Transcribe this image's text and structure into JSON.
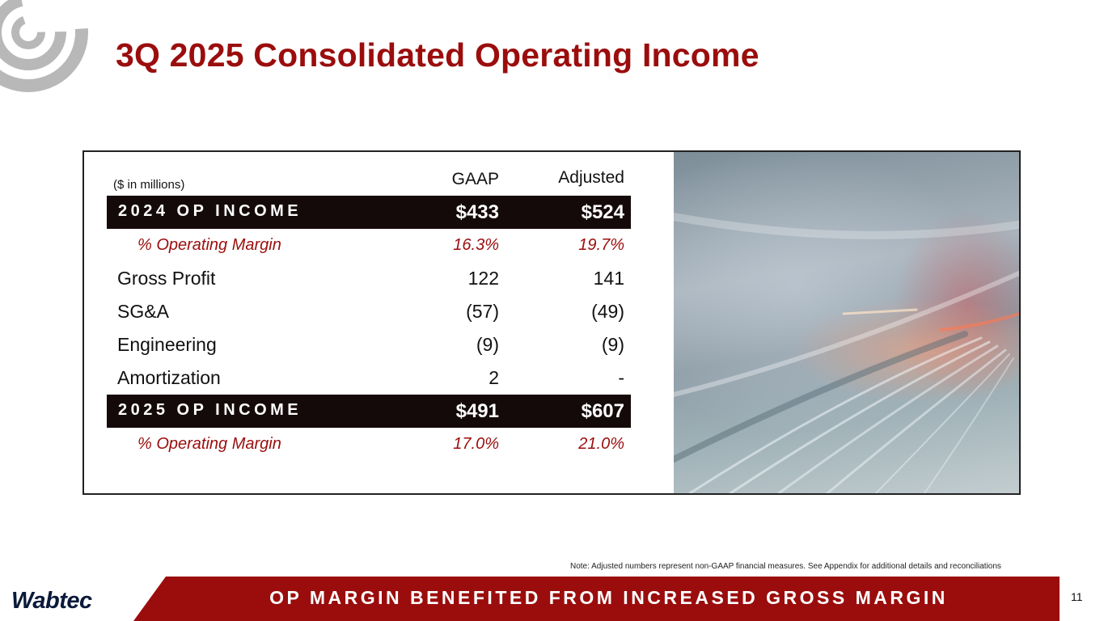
{
  "title": "3Q 2025 Consolidated Operating Income",
  "table": {
    "units_label": "($ in millions)",
    "col_gaap": "GAAP",
    "col_adjusted": "Adjusted",
    "rows": [
      {
        "label": "2024 OP INCOME",
        "gaap": "$433",
        "adjusted": "$524"
      },
      {
        "label": "% Operating Margin",
        "gaap": "16.3%",
        "adjusted": "19.7%"
      },
      {
        "label": "Gross Profit",
        "gaap": "122",
        "adjusted": "141"
      },
      {
        "label": "SG&A",
        "gaap": "(57)",
        "adjusted": "(49)"
      },
      {
        "label": "Engineering",
        "gaap": "(9)",
        "adjusted": "(9)"
      },
      {
        "label": "Amortization",
        "gaap": "2",
        "adjusted": "-"
      },
      {
        "label": "2025 OP INCOME",
        "gaap": "$491",
        "adjusted": "$607"
      },
      {
        "label": "% Operating Margin",
        "gaap": "17.0%",
        "adjusted": "21.0%"
      }
    ]
  },
  "note": "Note:  Adjusted numbers represent non-GAAP financial measures.  See Appendix for additional details and reconciliations",
  "footer": {
    "brand": "Wabtec",
    "banner": "OP MARGIN BENEFITED FROM INCREASED GROSS MARGIN",
    "page_number": "11"
  },
  "colors": {
    "accent": "#9b0d0d",
    "dark_row": "#150a0a",
    "brand_navy": "#0b1a3b",
    "footer_band": "#9b0d0d"
  }
}
